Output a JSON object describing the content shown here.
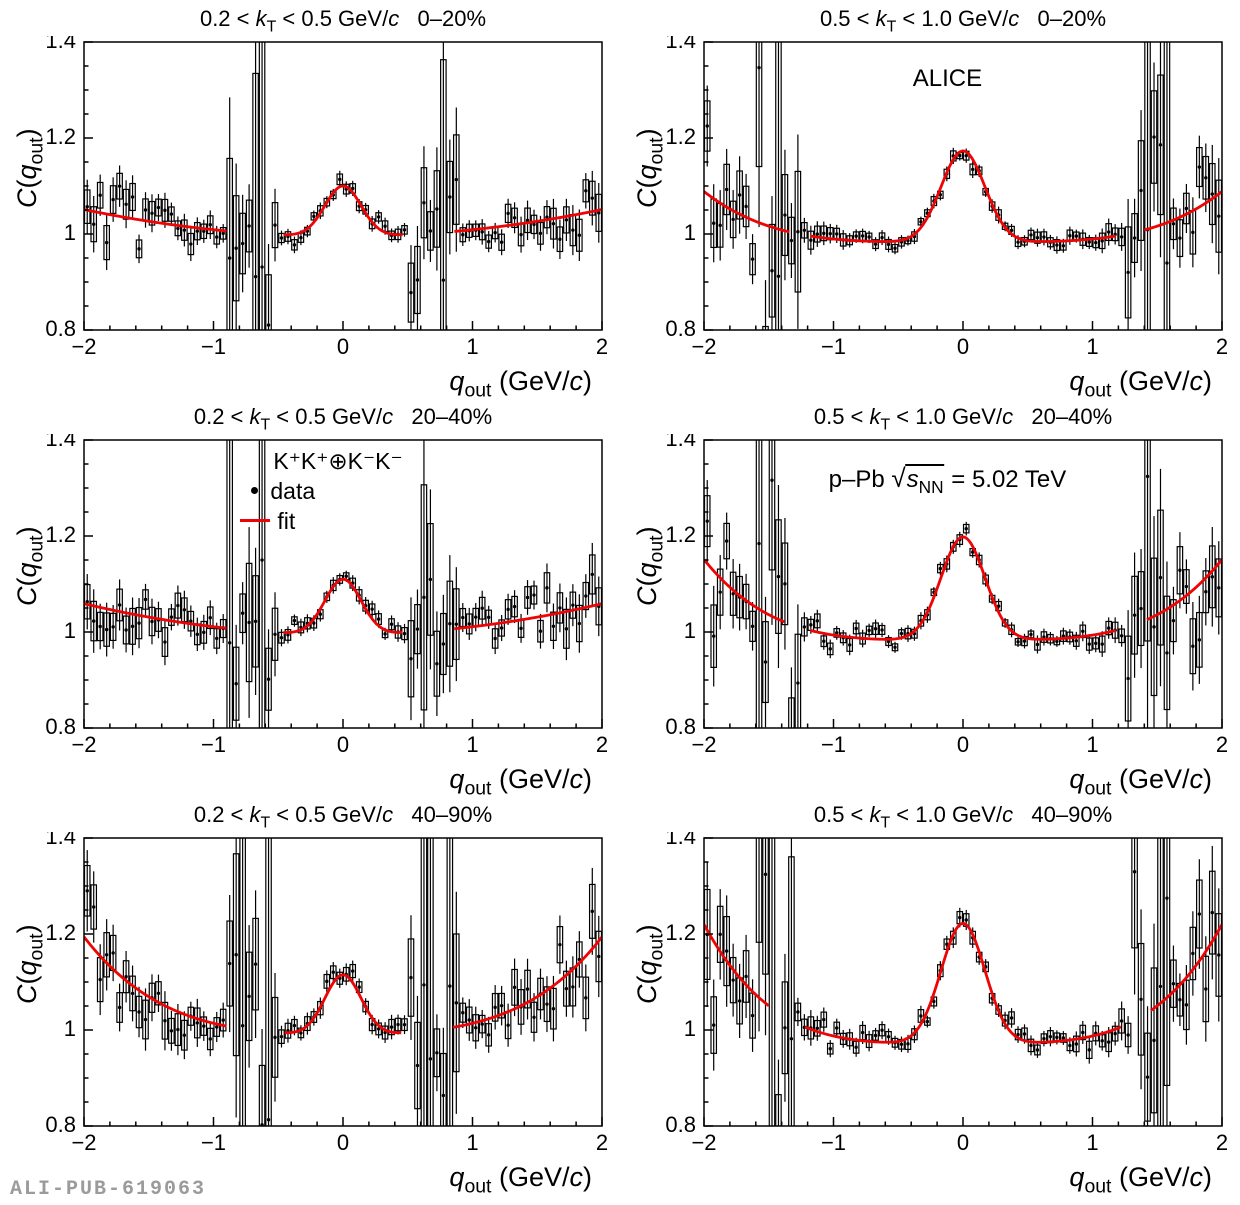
{
  "footer": {
    "label": "ALI-PUB-619063"
  },
  "colors": {
    "fit_line": "#ee0404",
    "data_marker": "#000000",
    "frame": "#000000",
    "footer_text": "#9b9b9b",
    "background": "#ffffff"
  },
  "chart_data": {
    "type": "scatter",
    "description": "Kaon femtoscopic correlation functions C(q_out) versus q_out in p-Pb collisions: six panels (two kT ranges x three centrality classes), black data points with statistical bars and systematic boxes, red fit = background polynomial plus Gaussian peak at q_out = 0.",
    "axes": {
      "xlim": [
        -2,
        2
      ],
      "ylim": [
        0.8,
        1.4
      ],
      "x_tick_values": [
        -2,
        -1,
        0,
        1,
        2
      ],
      "x_ticks": [
        "−2",
        "−1",
        "0",
        "1",
        "2"
      ],
      "x_minor_step": 0.2,
      "y_tick_values": [
        0.8,
        1,
        1.2,
        1.4
      ],
      "y_ticks": [
        "0.8",
        "1",
        "1.2",
        "1.4"
      ],
      "y_minor_step": 0.05,
      "grid": false,
      "ylabel_text": "C(q_out)",
      "xlabel_text": "q_out (GeV/c)",
      "ylabel": {
        "func": "C",
        "open": "(",
        "symbol": "q",
        "subscript": "out",
        "close": ")"
      },
      "xlabel": {
        "symbol": "q",
        "subscript": "out",
        "unit": " (GeV/c)"
      }
    },
    "legend": {
      "panel_index": 2,
      "pair_label": "K⁺K⁺⊕K⁻K⁻",
      "data_label": "data",
      "fit_label": "fit",
      "fx": 0.3,
      "fy": 0.02
    },
    "annotations": [
      {
        "panel_index": 1,
        "kind": "plain",
        "text": "ALICE",
        "fx": 0.47,
        "fy": 0.08
      },
      {
        "panel_index": 3,
        "kind": "sqrt",
        "prefix": "p–Pb ",
        "sqrt_arg": "s",
        "sqrt_sub": "NN",
        "suffix": " = 5.02 TeV",
        "fx": 0.47,
        "fy": 0.08
      }
    ],
    "panels": [
      {
        "title_text": "0.2 < kT < 0.5 GeV/c   0–20%",
        "kt_label": {
          "lo": "0.2",
          "sym": "k",
          "sub": "T",
          "hi": "0.5",
          "unit": "GeV/c"
        },
        "centrality": "0–20%",
        "baseline_C": 1.0,
        "approx_peak_C": 1.1,
        "edge_C_at_2": 1.05,
        "fit_model": {
          "b0": 0.995,
          "b2": 0.014,
          "b4": 0,
          "peak_amp": 0.105,
          "peak_sigma": 0.14
        },
        "fit_segments": [
          [
            -2,
            -0.9
          ],
          [
            -0.46,
            0.46
          ],
          [
            0.86,
            2
          ]
        ],
        "scatter": {
          "bin_width": 0.05,
          "noise_center": 0.01,
          "noise_edge": 0.03,
          "noise_pow": 2,
          "excl": [
            0.5,
            0.88
          ],
          "excl_boost": [
            3,
            9
          ],
          "spike_prob": 0.3,
          "spike_scale": 5,
          "seed": 101
        }
      },
      {
        "title_text": "0.5 < kT < 1.0 GeV/c   0–20%",
        "kt_label": {
          "lo": "0.5",
          "sym": "k",
          "sub": "T",
          "hi": "1.0",
          "unit": "GeV/c"
        },
        "centrality": "0–20%",
        "baseline_C": 0.98,
        "approx_peak_C": 1.17,
        "edge_C_at_2": 1.09,
        "fit_model": {
          "b0": 0.983,
          "b2": 0,
          "b4": 0.0066,
          "peak_amp": 0.19,
          "peak_sigma": 0.17
        },
        "fit_segments": [
          [
            -2,
            -1.34
          ],
          [
            -1.18,
            1.18
          ],
          [
            1.4,
            2
          ]
        ],
        "scatter": {
          "bin_width": 0.05,
          "noise_center": 0.01,
          "noise_edge": 0.065,
          "noise_pow": 4,
          "excl": [
            1.26,
            1.62
          ],
          "excl_boost": [
            2.5,
            7
          ],
          "spike_prob": 0.28,
          "spike_scale": 4,
          "seed": 202
        }
      },
      {
        "title_text": "0.2 < kT < 0.5 GeV/c   20–40%",
        "kt_label": {
          "lo": "0.2",
          "sym": "k",
          "sub": "T",
          "hi": "0.5",
          "unit": "GeV/c"
        },
        "centrality": "20–40%",
        "baseline_C": 1.0,
        "approx_peak_C": 1.11,
        "edge_C_at_2": 1.06,
        "fit_model": {
          "b0": 0.995,
          "b2": 0.016,
          "b4": 0,
          "peak_amp": 0.115,
          "peak_sigma": 0.14
        },
        "fit_segments": [
          [
            -2,
            -0.9
          ],
          [
            -0.46,
            0.46
          ],
          [
            0.86,
            2
          ]
        ],
        "scatter": {
          "bin_width": 0.05,
          "noise_center": 0.011,
          "noise_edge": 0.035,
          "noise_pow": 2,
          "excl": [
            0.5,
            0.88
          ],
          "excl_boost": [
            3,
            9
          ],
          "spike_prob": 0.3,
          "spike_scale": 5,
          "seed": 303
        }
      },
      {
        "title_text": "0.5 < kT < 1.0 GeV/c   20–40%",
        "kt_label": {
          "lo": "0.5",
          "sym": "k",
          "sub": "T",
          "hi": "1.0",
          "unit": "GeV/c"
        },
        "centrality": "20–40%",
        "baseline_C": 0.98,
        "approx_peak_C": 1.2,
        "edge_C_at_2": 1.15,
        "fit_model": {
          "b0": 0.983,
          "b2": 0,
          "b4": 0.0105,
          "peak_amp": 0.215,
          "peak_sigma": 0.17
        },
        "fit_segments": [
          [
            -2,
            -1.38
          ],
          [
            -1.18,
            1.18
          ],
          [
            1.42,
            2
          ]
        ],
        "scatter": {
          "bin_width": 0.05,
          "noise_center": 0.01,
          "noise_edge": 0.07,
          "noise_pow": 4,
          "excl": [
            1.26,
            1.62
          ],
          "excl_boost": [
            2.5,
            7
          ],
          "spike_prob": 0.28,
          "spike_scale": 4,
          "seed": 404
        }
      },
      {
        "title_text": "0.2 < kT < 0.5 GeV/c   40–90%",
        "kt_label": {
          "lo": "0.2",
          "sym": "k",
          "sub": "T",
          "hi": "0.5",
          "unit": "GeV/c"
        },
        "centrality": "40–90%",
        "baseline_C": 1.0,
        "approx_peak_C": 1.12,
        "edge_C_at_2": 1.2,
        "fit_model": {
          "b0": 0.99,
          "b2": 0.015,
          "b4": 0.009,
          "peak_amp": 0.125,
          "peak_sigma": 0.14
        },
        "fit_segments": [
          [
            -2,
            -0.9
          ],
          [
            -0.45,
            0.45
          ],
          [
            0.85,
            2
          ]
        ],
        "scatter": {
          "bin_width": 0.05,
          "noise_center": 0.013,
          "noise_edge": 0.048,
          "noise_pow": 2,
          "excl": [
            0.5,
            0.88
          ],
          "excl_boost": [
            3,
            8
          ],
          "spike_prob": 0.3,
          "spike_scale": 5,
          "seed": 505
        }
      },
      {
        "title_text": "0.5 < kT < 1.0 GeV/c   40–90%",
        "kt_label": {
          "lo": "0.5",
          "sym": "k",
          "sub": "T",
          "hi": "1.0",
          "unit": "GeV/c"
        },
        "centrality": "40–90%",
        "baseline_C": 0.97,
        "approx_peak_C": 1.22,
        "edge_C_at_2": 1.22,
        "fit_model": {
          "b0": 0.972,
          "b2": 0,
          "b4": 0.0155,
          "peak_amp": 0.25,
          "peak_sigma": 0.17
        },
        "fit_segments": [
          [
            -2,
            -1.5
          ],
          [
            -1.22,
            1.22
          ],
          [
            1.45,
            2
          ]
        ],
        "scatter": {
          "bin_width": 0.05,
          "noise_center": 0.012,
          "noise_edge": 0.08,
          "noise_pow": 4,
          "excl": [
            1.28,
            1.6
          ],
          "excl_boost": [
            2.5,
            7
          ],
          "spike_prob": 0.28,
          "spike_scale": 4,
          "seed": 606
        }
      }
    ]
  }
}
